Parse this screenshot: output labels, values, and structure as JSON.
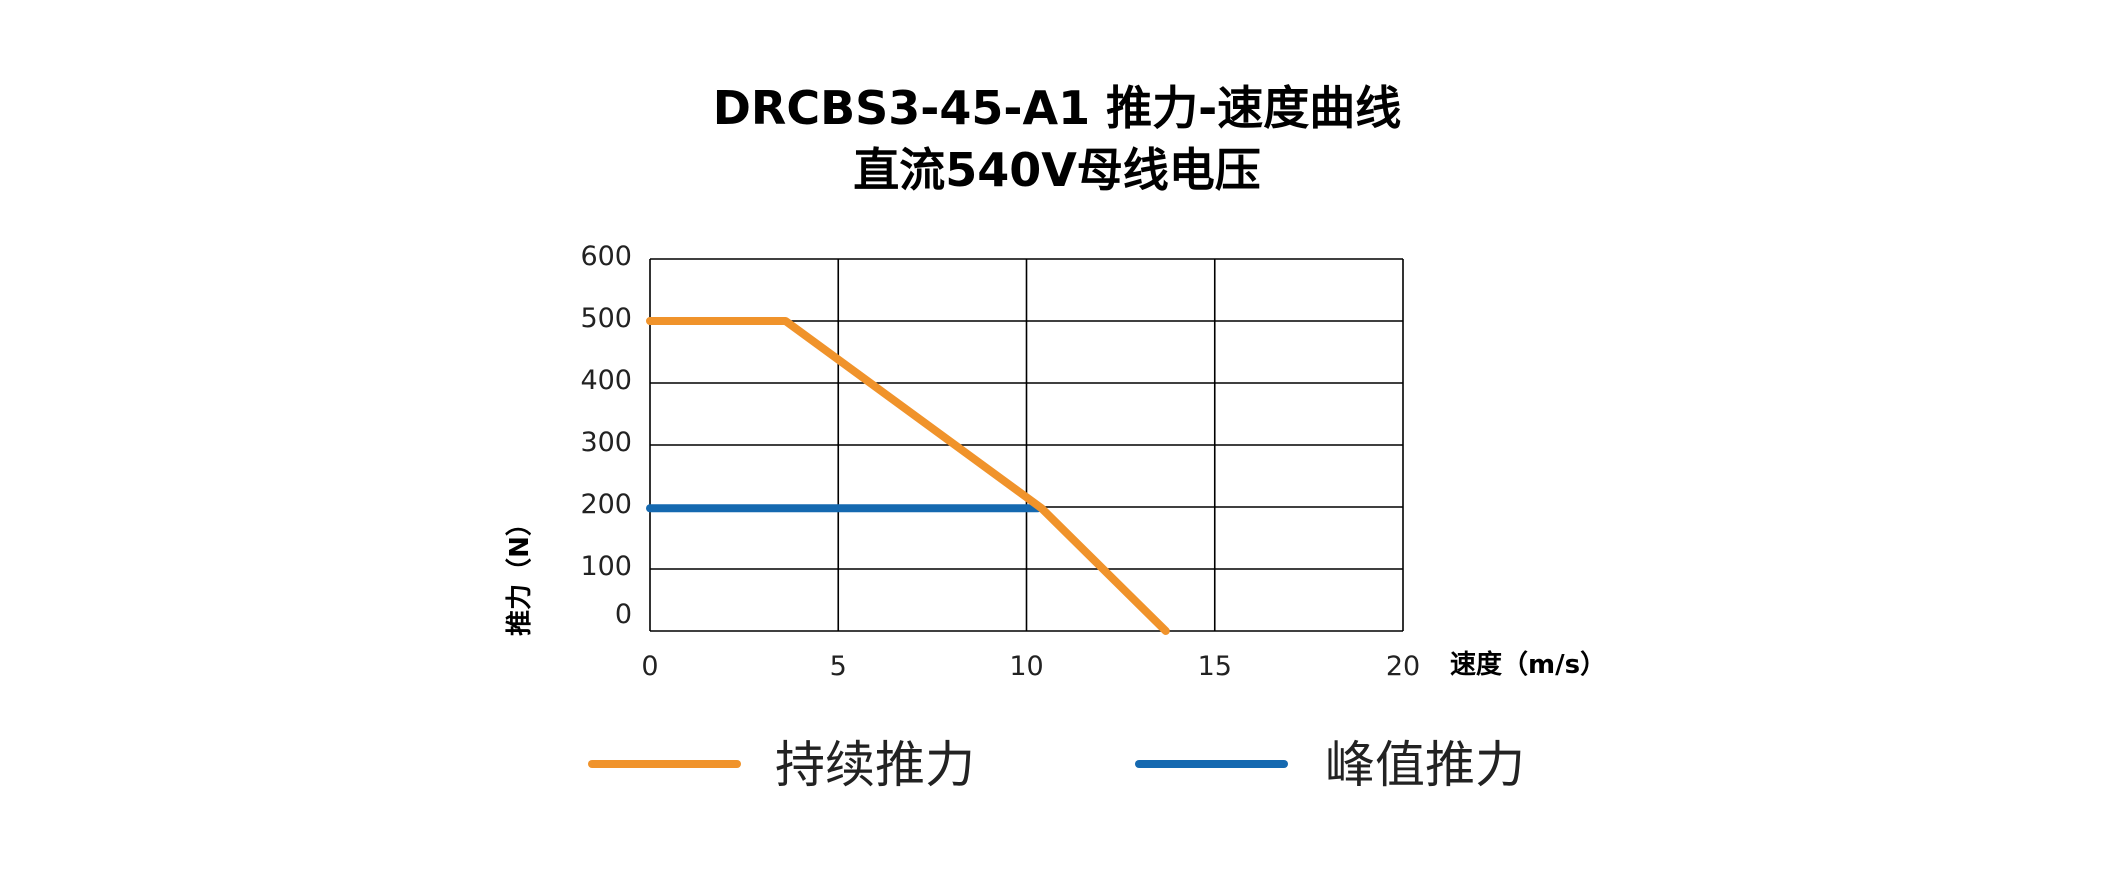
{
  "chart_data": {
    "type": "line",
    "title": "DRCBS3-45-A1 推力-速度曲线",
    "subtitle": "直流540V母线电压",
    "xlabel": "速度（m/s）",
    "ylabel": "推力（N）",
    "xlim": [
      0,
      20
    ],
    "ylim": [
      0,
      600
    ],
    "xticks": [
      "0",
      "5",
      "10",
      "15",
      "20"
    ],
    "yticks": [
      "0",
      "100",
      "200",
      "300",
      "400",
      "500",
      "600"
    ],
    "grid": true,
    "legend_position": "bottom",
    "series": [
      {
        "name": "持续推力",
        "color": "#F0932B",
        "x": [
          0,
          3.6,
          10.4,
          13.7
        ],
        "y": [
          500,
          500,
          198,
          0
        ]
      },
      {
        "name": "峰值推力",
        "color": "#1569B0",
        "x": [
          0,
          10.3
        ],
        "y": [
          198,
          198
        ]
      }
    ]
  }
}
